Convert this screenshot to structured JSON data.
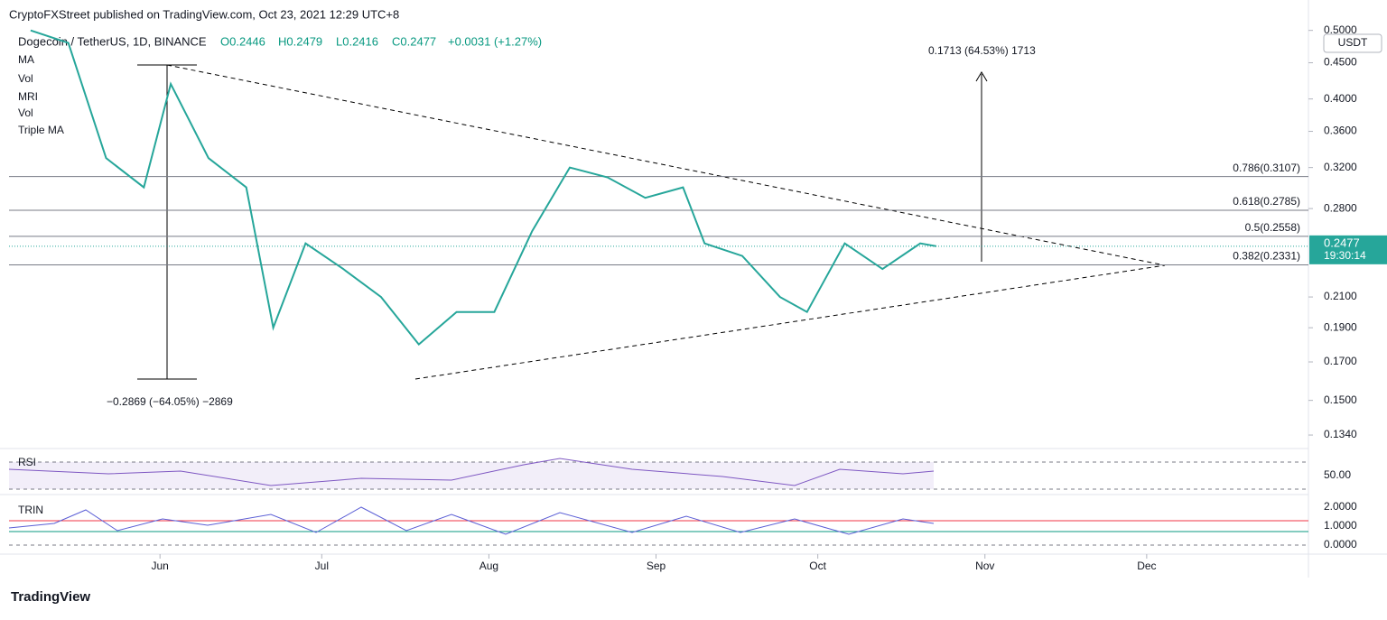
{
  "header": {
    "publisher": "CryptoFXStreet published on TradingView.com, Oct 23, 2021 12:29 UTC+8",
    "symbol": "Dogecoin / TetherUS, 1D, BINANCE",
    "ohlc": [
      "O0.2446",
      "H0.2479",
      "L0.2416",
      "C0.2477"
    ],
    "change": "+0.0031 (+1.27%)",
    "indicators": [
      "MA",
      "Vol",
      "MRI",
      "Vol",
      "Triple MA"
    ]
  },
  "chart_data": {
    "type": "line",
    "scale": "log",
    "currency": "USDT",
    "x": [
      "2021-05-08",
      "2021-05-15",
      "2021-05-22",
      "2021-05-29",
      "2021-06-03",
      "2021-06-10",
      "2021-06-17",
      "2021-06-22",
      "2021-06-28",
      "2021-07-05",
      "2021-07-12",
      "2021-07-19",
      "2021-07-26",
      "2021-08-02",
      "2021-08-09",
      "2021-08-16",
      "2021-08-23",
      "2021-08-30",
      "2021-09-06",
      "2021-09-10",
      "2021-09-17",
      "2021-09-24",
      "2021-09-29",
      "2021-10-06",
      "2021-10-13",
      "2021-10-20",
      "2021-10-23"
    ],
    "series": [
      {
        "name": "Dogecoin / TetherUS",
        "color": "#26a69a",
        "values": [
          0.5,
          0.48,
          0.33,
          0.3,
          0.42,
          0.33,
          0.3,
          0.19,
          0.25,
          0.23,
          0.21,
          0.18,
          0.2,
          0.2,
          0.26,
          0.32,
          0.31,
          0.29,
          0.3,
          0.25,
          0.24,
          0.21,
          0.2,
          0.25,
          0.23,
          0.25,
          0.2477
        ]
      }
    ],
    "xlim": [
      "2021-05-04",
      "2021-12-31"
    ],
    "xticks": [
      {
        "value": "2021-06-01",
        "label": "Jun"
      },
      {
        "value": "2021-07-01",
        "label": "Jul"
      },
      {
        "value": "2021-08-01",
        "label": "Aug"
      },
      {
        "value": "2021-09-01",
        "label": "Sep"
      },
      {
        "value": "2021-10-01",
        "label": "Oct"
      },
      {
        "value": "2021-11-01",
        "label": "Nov"
      },
      {
        "value": "2021-12-01",
        "label": "Dec"
      }
    ],
    "ylim": [
      0.129,
      0.536
    ],
    "yticks": [
      {
        "value": 0.5,
        "label": "0.5000"
      },
      {
        "value": 0.45,
        "label": "0.4500"
      },
      {
        "value": 0.4,
        "label": "0.4000"
      },
      {
        "value": 0.36,
        "label": "0.3600"
      },
      {
        "value": 0.32,
        "label": "0.3200"
      },
      {
        "value": 0.28,
        "label": "0.2800"
      },
      {
        "value": 0.21,
        "label": "0.2100"
      },
      {
        "value": 0.19,
        "label": "0.1900"
      },
      {
        "value": 0.17,
        "label": "0.1700"
      },
      {
        "value": 0.15,
        "label": "0.1500"
      },
      {
        "value": 0.134,
        "label": "0.1340"
      }
    ],
    "last_price": {
      "value": 0.2477,
      "label": "0.2477",
      "countdown": "19:30:14"
    },
    "fib_levels": [
      {
        "value": 0.3107,
        "label": "0.786(0.3107)"
      },
      {
        "value": 0.2785,
        "label": "0.618(0.2785)"
      },
      {
        "value": 0.2558,
        "label": "0.5(0.2558)"
      },
      {
        "value": 0.2331,
        "label": "0.382(0.2331)"
      }
    ],
    "annotations": [
      "0.1713 (64.53%) 1713",
      "−0.2869 (−64.05%) −2869"
    ]
  },
  "rsi": {
    "title": "RSI",
    "level": "50.00"
  },
  "trin": {
    "title": "TRIN",
    "ticks": [
      "2.0000",
      "1.0000",
      "0.0000"
    ]
  },
  "footer": "TradingView"
}
